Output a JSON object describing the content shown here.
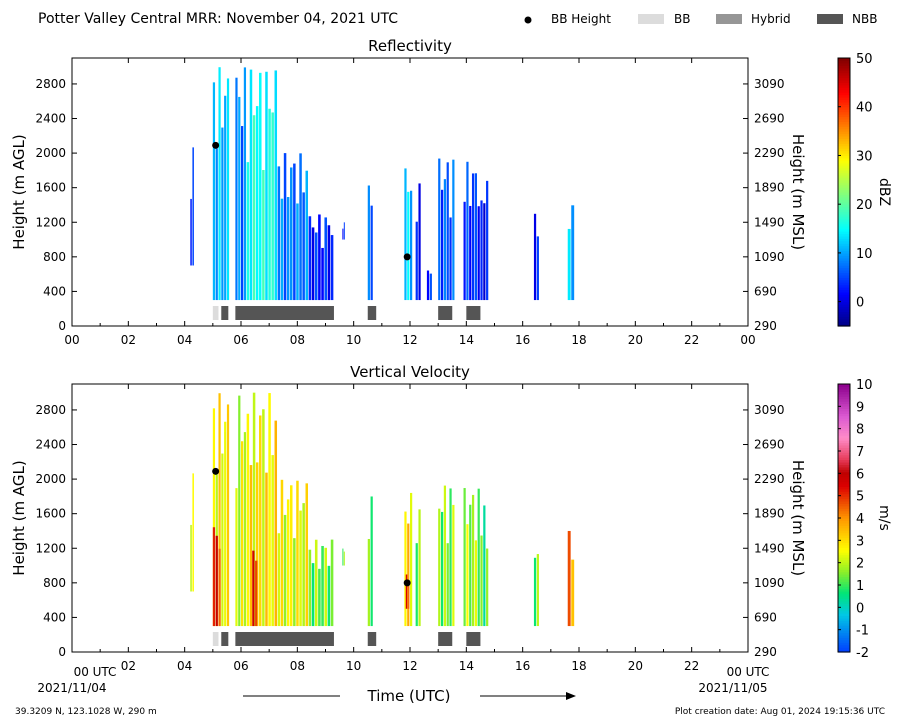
{
  "header": {
    "title": "Potter Valley Central MRR:  November 04, 2021 UTC",
    "legend": [
      {
        "kind": "dot",
        "label": "BB Height",
        "color": "#000000"
      },
      {
        "kind": "box",
        "label": "BB",
        "color": "#dcdcdc"
      },
      {
        "kind": "box",
        "label": "Hybrid",
        "color": "#969696"
      },
      {
        "kind": "box",
        "label": "NBB",
        "color": "#555555"
      }
    ]
  },
  "footer": {
    "location": "39.3209 N, 123.1028 W, 290 m",
    "created": "Plot creation date: Aug 01, 2024 19:15:36 UTC",
    "xlabel": "Time (UTC)",
    "start_tick": "00 UTC",
    "end_tick": "00 UTC",
    "start_date": "2021/11/04",
    "end_date": "2021/11/05"
  },
  "chart_data": [
    {
      "type": "heatmap",
      "title": "Reflectivity",
      "ylabel": "Height (m AGL)",
      "y2label": "Height (m MSL)",
      "colorbar_label": "dBZ",
      "xlim": [
        0,
        24
      ],
      "ylim": [
        0,
        3100
      ],
      "x_ticks": [
        "00",
        "02",
        "04",
        "06",
        "08",
        "10",
        "12",
        "14",
        "16",
        "18",
        "20",
        "22",
        "00"
      ],
      "y_ticks": [
        0,
        400,
        800,
        1200,
        1600,
        2000,
        2400,
        2800
      ],
      "y2_ticks": [
        290,
        690,
        1090,
        1490,
        1890,
        2290,
        2690,
        3090
      ],
      "colorbar": {
        "min": -5,
        "max": 50,
        "ticks": [
          0,
          10,
          20,
          30,
          40,
          50
        ]
      },
      "bb_height": [
        {
          "x": 5.1,
          "y": 2090
        },
        {
          "x": 11.9,
          "y": 800
        }
      ],
      "bright_band_type": [
        {
          "start": 5.0,
          "end": 5.2,
          "type": "BB"
        },
        {
          "start": 5.3,
          "end": 5.55,
          "type": "NBB"
        },
        {
          "start": 5.8,
          "end": 9.3,
          "type": "NBB"
        },
        {
          "start": 10.5,
          "end": 10.8,
          "type": "NBB"
        },
        {
          "start": 13.0,
          "end": 13.5,
          "type": "NBB"
        },
        {
          "start": 14.0,
          "end": 14.5,
          "type": "NBB"
        }
      ],
      "cells": [
        {
          "x0": 4.2,
          "x1": 4.35,
          "y0": 700,
          "y1": 2100,
          "v": 3
        },
        {
          "x0": 5.0,
          "x1": 5.6,
          "y0": 300,
          "y1": 3000,
          "v": 11
        },
        {
          "x0": 5.8,
          "x1": 6.2,
          "y0": 300,
          "y1": 3000,
          "v": 8
        },
        {
          "x0": 6.2,
          "x1": 7.3,
          "y0": 300,
          "y1": 3000,
          "v": 16
        },
        {
          "x0": 7.3,
          "x1": 8.4,
          "y0": 300,
          "y1": 2000,
          "v": 8
        },
        {
          "x0": 8.4,
          "x1": 9.3,
          "y0": 300,
          "y1": 1300,
          "v": 3
        },
        {
          "x0": 9.6,
          "x1": 9.7,
          "y0": 1000,
          "y1": 1200,
          "v": 2
        },
        {
          "x0": 10.5,
          "x1": 10.7,
          "y0": 300,
          "y1": 1800,
          "v": 8
        },
        {
          "x0": 11.8,
          "x1": 12.1,
          "y0": 300,
          "y1": 1850,
          "v": 12
        },
        {
          "x0": 12.2,
          "x1": 12.4,
          "y0": 300,
          "y1": 1650,
          "v": 3
        },
        {
          "x0": 12.6,
          "x1": 12.8,
          "y0": 300,
          "y1": 700,
          "v": 3
        },
        {
          "x0": 13.0,
          "x1": 13.6,
          "y0": 300,
          "y1": 1950,
          "v": 6
        },
        {
          "x0": 13.9,
          "x1": 14.5,
          "y0": 300,
          "y1": 1900,
          "v": 4
        },
        {
          "x0": 14.5,
          "x1": 14.8,
          "y0": 300,
          "y1": 1700,
          "v": 2
        },
        {
          "x0": 16.4,
          "x1": 16.6,
          "y0": 300,
          "y1": 1300,
          "v": 2
        },
        {
          "x0": 17.6,
          "x1": 17.85,
          "y0": 300,
          "y1": 1400,
          "v": 12
        }
      ]
    },
    {
      "type": "heatmap",
      "title": "Vertical Velocity",
      "ylabel": "Height (m AGL)",
      "y2label": "Height (m MSL)",
      "colorbar_label": "m/s",
      "xlim": [
        0,
        24
      ],
      "ylim": [
        0,
        3100
      ],
      "x_ticks": [
        "",
        "02",
        "04",
        "06",
        "08",
        "10",
        "12",
        "14",
        "16",
        "18",
        "20",
        "22",
        ""
      ],
      "y_ticks": [
        0,
        400,
        800,
        1200,
        1600,
        2000,
        2400,
        2800
      ],
      "y2_ticks": [
        290,
        690,
        1090,
        1490,
        1890,
        2290,
        2690,
        3090
      ],
      "colorbar": {
        "min": -2,
        "max": 10,
        "ticks": [
          -2,
          -1,
          0,
          1,
          2,
          3,
          4,
          5,
          6,
          7,
          8,
          9,
          10
        ]
      },
      "bb_height": [
        {
          "x": 5.1,
          "y": 2090
        },
        {
          "x": 11.9,
          "y": 800
        }
      ],
      "bright_band_type": [
        {
          "start": 5.0,
          "end": 5.2,
          "type": "BB"
        },
        {
          "start": 5.3,
          "end": 5.55,
          "type": "NBB"
        },
        {
          "start": 5.8,
          "end": 9.3,
          "type": "NBB"
        },
        {
          "start": 10.5,
          "end": 10.8,
          "type": "NBB"
        },
        {
          "start": 13.0,
          "end": 13.5,
          "type": "NBB"
        },
        {
          "start": 14.0,
          "end": 14.5,
          "type": "NBB"
        }
      ],
      "cells": [
        {
          "x0": 4.2,
          "x1": 4.35,
          "y0": 700,
          "y1": 2100,
          "v": 2
        },
        {
          "x0": 5.0,
          "x1": 5.6,
          "y0": 300,
          "y1": 3000,
          "v": 2.6
        },
        {
          "x0": 5.0,
          "x1": 5.3,
          "y0": 300,
          "y1": 1500,
          "v": 5.2
        },
        {
          "x0": 5.8,
          "x1": 6.2,
          "y0": 300,
          "y1": 3000,
          "v": 2.2
        },
        {
          "x0": 6.2,
          "x1": 7.3,
          "y0": 300,
          "y1": 3000,
          "v": 2.8
        },
        {
          "x0": 6.4,
          "x1": 6.6,
          "y0": 300,
          "y1": 1200,
          "v": 5.5
        },
        {
          "x0": 7.3,
          "x1": 8.4,
          "y0": 300,
          "y1": 2000,
          "v": 2.4
        },
        {
          "x0": 8.4,
          "x1": 9.3,
          "y0": 300,
          "y1": 1300,
          "v": 1.4
        },
        {
          "x0": 9.6,
          "x1": 9.7,
          "y0": 1000,
          "y1": 1200,
          "v": 1.2
        },
        {
          "x0": 10.5,
          "x1": 10.7,
          "y0": 300,
          "y1": 1800,
          "v": 1.5
        },
        {
          "x0": 11.8,
          "x1": 12.1,
          "y0": 300,
          "y1": 1850,
          "v": 3
        },
        {
          "x0": 11.85,
          "x1": 12.0,
          "y0": 500,
          "y1": 900,
          "v": 5.2
        },
        {
          "x0": 12.2,
          "x1": 12.4,
          "y0": 300,
          "y1": 1650,
          "v": 1.2
        },
        {
          "x0": 13.0,
          "x1": 13.6,
          "y0": 300,
          "y1": 1950,
          "v": 1.5
        },
        {
          "x0": 13.9,
          "x1": 14.5,
          "y0": 300,
          "y1": 1900,
          "v": 1.8
        },
        {
          "x0": 14.5,
          "x1": 14.8,
          "y0": 300,
          "y1": 1700,
          "v": 1.1
        },
        {
          "x0": 16.4,
          "x1": 16.6,
          "y0": 300,
          "y1": 1300,
          "v": 1.2
        },
        {
          "x0": 17.6,
          "x1": 17.85,
          "y0": 300,
          "y1": 1400,
          "v": 4.2
        }
      ]
    }
  ]
}
